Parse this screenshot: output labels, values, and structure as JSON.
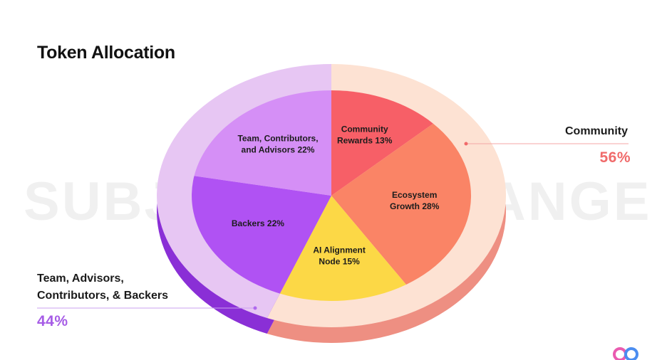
{
  "title": "Token Allocation",
  "watermark": "SUBJECT TO CHANGE",
  "callouts": {
    "community": {
      "label": "Community",
      "percent": "56%"
    },
    "team": {
      "label_line1": "Team, Advisors,",
      "label_line2": "Contributors, & Backers",
      "percent": "44%"
    }
  },
  "chart_data": {
    "type": "pie",
    "title": "Token Allocation",
    "categories": [
      "Community Rewards",
      "Ecosystem Growth",
      "AI Alignment Node",
      "Backers",
      "Team, Contributors, and Advisors"
    ],
    "values": [
      13,
      28,
      15,
      22,
      22
    ],
    "labels": [
      [
        "Community",
        "Rewards 13%"
      ],
      [
        "Ecosystem",
        "Growth 28%"
      ],
      [
        "AI Alignment",
        "Node 15%"
      ],
      [
        "Backers 22%"
      ],
      [
        "Team, Contributors,",
        "and Advisors 22%"
      ]
    ],
    "colors": [
      "#f75f67",
      "#fa8466",
      "#fcd846",
      "#b052f3",
      "#d58ff6"
    ],
    "groups": [
      {
        "name": "Community",
        "value": 56,
        "color": "#f4a27d"
      },
      {
        "name": "Team, Advisors, Contributors, & Backers",
        "value": 44,
        "color": "#c787f2"
      }
    ]
  }
}
